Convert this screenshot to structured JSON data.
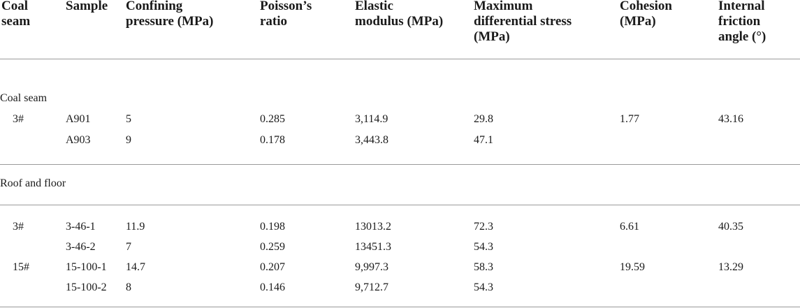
{
  "table": {
    "headers": [
      "Coal seam",
      "Sample",
      "Confining pressure (MPa)",
      "Poisson’s ratio",
      "Elastic modulus (MPa)",
      "Maximum differential stress (MPa)",
      "Cohesion (MPa)",
      "Internal friction angle (°)"
    ],
    "header_lines": [
      [
        "Coal",
        "seam"
      ],
      [
        "Sample"
      ],
      [
        "Confining",
        "pressure (MPa)"
      ],
      [
        "Poisson’s",
        "ratio"
      ],
      [
        "Elastic",
        "modulus (MPa)"
      ],
      [
        "Maximum",
        "differential stress",
        "(MPa)"
      ],
      [
        "Cohesion",
        "(MPa)"
      ],
      [
        "Internal",
        "friction",
        "angle (°)"
      ]
    ],
    "sections": [
      {
        "label": "Coal seam",
        "rows": [
          {
            "seam": "3#",
            "sample": "A901",
            "confining": "5",
            "poisson": "0.285",
            "elastic": "3,114.9",
            "max_stress": "29.8",
            "cohesion": "1.77",
            "friction": "43.16"
          },
          {
            "seam": "",
            "sample": "A903",
            "confining": "9",
            "poisson": "0.178",
            "elastic": "3,443.8",
            "max_stress": "47.1",
            "cohesion": "",
            "friction": ""
          }
        ]
      },
      {
        "label": "Roof and floor",
        "rows": [
          {
            "seam": "3#",
            "sample": "3-46-1",
            "confining": "11.9",
            "poisson": "0.198",
            "elastic": "13013.2",
            "max_stress": "72.3",
            "cohesion": "6.61",
            "friction": "40.35"
          },
          {
            "seam": "",
            "sample": "3-46-2",
            "confining": "7",
            "poisson": "0.259",
            "elastic": "13451.3",
            "max_stress": "54.3",
            "cohesion": "",
            "friction": ""
          },
          {
            "seam": "15#",
            "sample": "15-100-1",
            "confining": "14.7",
            "poisson": "0.207",
            "elastic": "9,997.3",
            "max_stress": "58.3",
            "cohesion": "19.59",
            "friction": "13.29"
          },
          {
            "seam": "",
            "sample": "15-100-2",
            "confining": "8",
            "poisson": "0.146",
            "elastic": "9,712.7",
            "max_stress": "54.3",
            "cohesion": "",
            "friction": ""
          }
        ]
      }
    ]
  }
}
